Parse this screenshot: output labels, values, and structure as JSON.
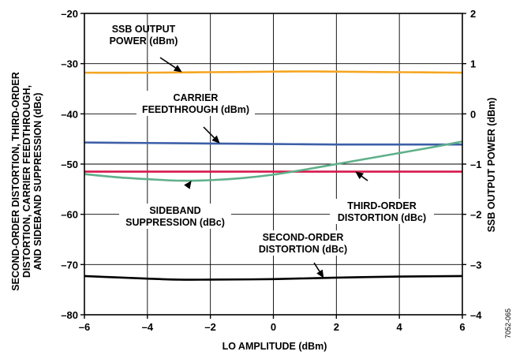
{
  "chart_data": {
    "type": "line",
    "xlabel": "LO AMPLITUDE (dBm)",
    "ylabel_lines": [
      "SECOND-ORDER DISTORTION, THIRD-ORDER",
      "DISTORTION, CARRIER FEEDTHROUGH,",
      "AND SIDEBAND SUPPRESSION (dBc)"
    ],
    "y2label": "SSB OUTPUT POWER (dBm)",
    "xlim": [
      -6,
      6
    ],
    "ylim": [
      -80,
      -20
    ],
    "y2lim": [
      -4,
      2
    ],
    "x_ticks": [
      -6,
      -4,
      -2,
      0,
      2,
      4,
      6
    ],
    "x_tick_labels": [
      "–6",
      "–4",
      "–2",
      "0",
      "2",
      "4",
      "6"
    ],
    "y_ticks": [
      -20,
      -30,
      -40,
      -50,
      -60,
      -70,
      -80
    ],
    "y_tick_labels": [
      "–20",
      "–30",
      "–40",
      "–50",
      "–60",
      "–70",
      "–80"
    ],
    "y2_ticks": [
      2,
      1,
      0,
      -1,
      -2,
      -3,
      -4
    ],
    "y2_tick_labels": [
      "2",
      "1",
      "0",
      "–1",
      "–2",
      "–3",
      "–4"
    ],
    "grid": true,
    "figure_id": "7052-065",
    "series": [
      {
        "key": "ssb",
        "axis": "right",
        "color": "#F5A623",
        "x": [
          -6,
          -4,
          -2,
          0,
          1,
          2,
          4,
          6
        ],
        "y": [
          0.82,
          0.82,
          0.83,
          0.84,
          0.845,
          0.84,
          0.83,
          0.82
        ]
      },
      {
        "key": "carrier",
        "axis": "left",
        "color": "#3D5FA8",
        "x": [
          -6,
          -4,
          -2,
          0,
          2,
          4,
          6
        ],
        "y": [
          -45.7,
          -45.8,
          -45.9,
          -46.0,
          -46.1,
          -46.1,
          -46.1
        ]
      },
      {
        "key": "third",
        "axis": "left",
        "color": "#D6194B",
        "x": [
          -6,
          -4,
          -2,
          0,
          2,
          4,
          6
        ],
        "y": [
          -51.5,
          -51.5,
          -51.5,
          -51.5,
          -51.5,
          -51.5,
          -51.5
        ]
      },
      {
        "key": "sideband",
        "axis": "left",
        "color": "#5FB08A",
        "x": [
          -6,
          -5,
          -4,
          -3,
          -2,
          -1,
          0,
          1,
          2,
          3,
          4,
          5,
          6
        ],
        "y": [
          -52.0,
          -52.6,
          -53.0,
          -53.3,
          -53.2,
          -52.8,
          -52.1,
          -51.1,
          -50.0,
          -48.9,
          -47.8,
          -46.7,
          -45.5
        ]
      },
      {
        "key": "second",
        "axis": "left",
        "color": "#000000",
        "x": [
          -6,
          -4,
          -3,
          -2,
          0,
          2,
          4,
          6
        ],
        "y": [
          -72.3,
          -72.8,
          -73.0,
          -73.0,
          -72.9,
          -72.6,
          -72.4,
          -72.3
        ]
      }
    ],
    "annotations": [
      {
        "key": "ssb",
        "lines": [
          "SSB OUTPUT",
          "POWER (dBm)"
        ],
        "target": [
          -2.9,
          0.83
        ],
        "target_axis": "right"
      },
      {
        "key": "carrier",
        "lines": [
          "CARRIER",
          "FEEDTHROUGH (dBm)"
        ],
        "target": [
          -1.7,
          -45.9
        ],
        "target_axis": "left"
      },
      {
        "key": "third",
        "lines": [
          "THIRD-ORDER",
          "DISTORTION (dBc)"
        ],
        "target": [
          2.6,
          -51.5
        ],
        "target_axis": "left"
      },
      {
        "key": "sideband",
        "lines": [
          "SIDEBAND",
          "SUPPRESSION (dBc)"
        ],
        "target": [
          -2.6,
          -53.3
        ],
        "target_axis": "left"
      },
      {
        "key": "second",
        "lines": [
          "SECOND-ORDER",
          "DISTORTION (dBc)"
        ],
        "target": [
          1.6,
          -72.7
        ],
        "target_axis": "left"
      }
    ]
  }
}
